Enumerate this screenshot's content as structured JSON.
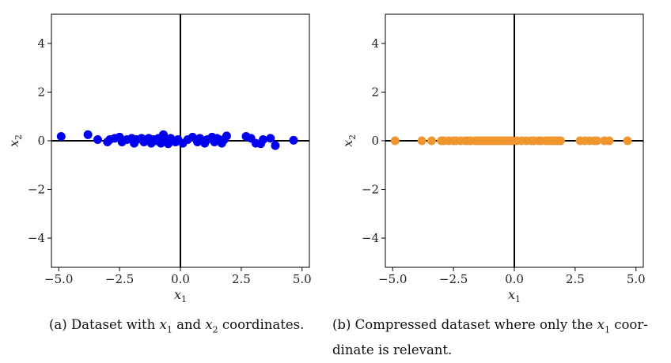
{
  "chart_data": [
    {
      "type": "scatter",
      "color": "#0000ee",
      "xlabel": "x1",
      "ylabel": "x2",
      "xlim": [
        -5.3,
        5.3
      ],
      "ylim": [
        -5.2,
        5.2
      ],
      "xticks": [
        "−5.0",
        "−2.5",
        "0.0",
        "2.5",
        "5.0"
      ],
      "yticks": [
        "−4",
        "−2",
        "0",
        "2",
        "4"
      ],
      "xtick_values": [
        -5,
        -2.5,
        0,
        2.5,
        5
      ],
      "ytick_values": [
        -4,
        -2,
        0,
        2,
        4
      ],
      "points": [
        [
          -4.9,
          0.18
        ],
        [
          -3.8,
          0.25
        ],
        [
          -3.4,
          0.05
        ],
        [
          -3.0,
          -0.05
        ],
        [
          -2.9,
          0.05
        ],
        [
          -2.7,
          0.1
        ],
        [
          -2.5,
          0.15
        ],
        [
          -2.4,
          -0.05
        ],
        [
          -2.2,
          0.05
        ],
        [
          -2.0,
          0.1
        ],
        [
          -1.9,
          -0.1
        ],
        [
          -1.8,
          0.05
        ],
        [
          -1.6,
          0.1
        ],
        [
          -1.5,
          -0.05
        ],
        [
          -1.4,
          0.05
        ],
        [
          -1.3,
          0.1
        ],
        [
          -1.2,
          -0.1
        ],
        [
          -1.1,
          0.05
        ],
        [
          -1.0,
          0.0
        ],
        [
          -0.9,
          0.1
        ],
        [
          -0.8,
          -0.1
        ],
        [
          -0.7,
          0.25
        ],
        [
          -0.6,
          0.05
        ],
        [
          -0.5,
          -0.12
        ],
        [
          -0.4,
          0.1
        ],
        [
          -0.3,
          0.0
        ],
        [
          -0.2,
          -0.05
        ],
        [
          -0.1,
          0.05
        ],
        [
          0.1,
          -0.1
        ],
        [
          0.3,
          0.05
        ],
        [
          0.5,
          0.15
        ],
        [
          0.7,
          -0.05
        ],
        [
          0.8,
          0.1
        ],
        [
          1.0,
          -0.1
        ],
        [
          1.1,
          0.05
        ],
        [
          1.3,
          0.15
        ],
        [
          1.4,
          -0.05
        ],
        [
          1.5,
          0.1
        ],
        [
          1.6,
          0.05
        ],
        [
          1.7,
          -0.1
        ],
        [
          1.8,
          0.05
        ],
        [
          1.9,
          0.2
        ],
        [
          2.7,
          0.18
        ],
        [
          2.9,
          0.1
        ],
        [
          3.1,
          -0.1
        ],
        [
          3.3,
          -0.12
        ],
        [
          3.4,
          0.05
        ],
        [
          3.7,
          0.1
        ],
        [
          3.9,
          -0.2
        ],
        [
          4.65,
          0.02
        ]
      ]
    },
    {
      "type": "scatter",
      "color": "#f0962e",
      "xlabel": "x1",
      "ylabel": "x2",
      "xlim": [
        -5.3,
        5.3
      ],
      "ylim": [
        -5.2,
        5.2
      ],
      "xticks": [
        "−5.0",
        "−2.5",
        "0.0",
        "2.5",
        "5.0"
      ],
      "yticks": [
        "−4",
        "−2",
        "0",
        "2",
        "4"
      ],
      "xtick_values": [
        -5,
        -2.5,
        0,
        2.5,
        5
      ],
      "ytick_values": [
        -4,
        -2,
        0,
        2,
        4
      ],
      "points": [
        [
          -4.9,
          0
        ],
        [
          -3.8,
          0
        ],
        [
          -3.4,
          0
        ],
        [
          -3.0,
          0
        ],
        [
          -2.9,
          0
        ],
        [
          -2.7,
          0
        ],
        [
          -2.5,
          0
        ],
        [
          -2.4,
          0
        ],
        [
          -2.2,
          0
        ],
        [
          -2.0,
          0
        ],
        [
          -1.9,
          0
        ],
        [
          -1.8,
          0
        ],
        [
          -1.6,
          0
        ],
        [
          -1.5,
          0
        ],
        [
          -1.4,
          0
        ],
        [
          -1.3,
          0
        ],
        [
          -1.2,
          0
        ],
        [
          -1.1,
          0
        ],
        [
          -1.0,
          0
        ],
        [
          -0.9,
          0
        ],
        [
          -0.8,
          0
        ],
        [
          -0.7,
          0
        ],
        [
          -0.6,
          0
        ],
        [
          -0.5,
          0
        ],
        [
          -0.4,
          0
        ],
        [
          -0.3,
          0
        ],
        [
          -0.2,
          0
        ],
        [
          -0.1,
          0
        ],
        [
          0.1,
          0
        ],
        [
          0.3,
          0
        ],
        [
          0.5,
          0
        ],
        [
          0.7,
          0
        ],
        [
          0.8,
          0
        ],
        [
          1.0,
          0
        ],
        [
          1.1,
          0
        ],
        [
          1.3,
          0
        ],
        [
          1.4,
          0
        ],
        [
          1.5,
          0
        ],
        [
          1.6,
          0
        ],
        [
          1.7,
          0
        ],
        [
          1.8,
          0
        ],
        [
          1.9,
          0
        ],
        [
          2.7,
          0
        ],
        [
          2.9,
          0
        ],
        [
          3.1,
          0
        ],
        [
          3.3,
          0
        ],
        [
          3.4,
          0
        ],
        [
          3.7,
          0
        ],
        [
          3.9,
          0
        ],
        [
          4.65,
          0
        ]
      ]
    }
  ],
  "captions": {
    "a": {
      "prefix": "(a) Dataset with ",
      "var1": "x",
      "sub1": "1",
      "middle": " and ",
      "var2": "x",
      "sub2": "2",
      "suffix": " coordinates."
    },
    "b": {
      "prefix": "(b) Compressed dataset where only the ",
      "var1": "x",
      "sub1": "1",
      "suffix": " coor-dinate is relevant."
    }
  }
}
